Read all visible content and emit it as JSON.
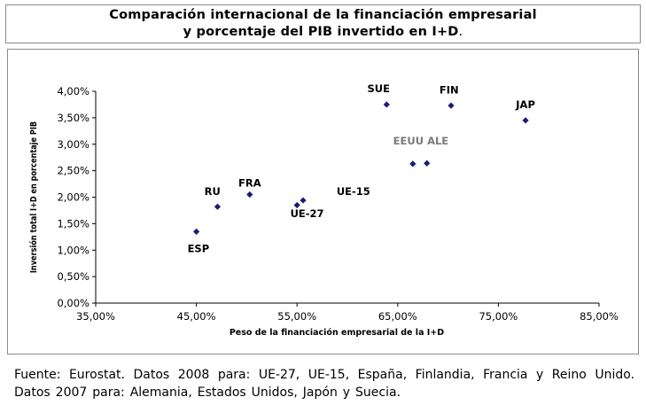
{
  "chart_data": {
    "type": "scatter",
    "title_lines": [
      "Comparación internacional de la financiación empresarial",
      "y porcentaje del PIB invertido en I+D"
    ],
    "title_suffix": ".",
    "xlabel": "Peso de la financiación empresarial de la I+D",
    "ylabel": "Inversión total I+D en porcentaje PIB",
    "xlim": [
      35,
      85
    ],
    "ylim": [
      0,
      4
    ],
    "x_ticks": [
      35,
      45,
      55,
      65,
      75,
      85
    ],
    "y_ticks": [
      0,
      0.5,
      1.0,
      1.5,
      2.0,
      2.5,
      3.0,
      3.5,
      4.0
    ],
    "x_tick_labels": [
      "35,00%",
      "45,00%",
      "55,00%",
      "65,00%",
      "75,00%",
      "85,00%"
    ],
    "y_tick_labels": [
      "0,00%",
      "0,50%",
      "1,00%",
      "1,50%",
      "2,00%",
      "2,50%",
      "3,00%",
      "3,50%",
      "4,00%"
    ],
    "grid": false,
    "marker_color": "#1a1a80",
    "points": [
      {
        "x": 45.0,
        "y": 1.35
      },
      {
        "x": 47.1,
        "y": 1.82
      },
      {
        "x": 50.3,
        "y": 2.05
      },
      {
        "x": 55.0,
        "y": 1.85
      },
      {
        "x": 55.6,
        "y": 1.94
      },
      {
        "x": 63.9,
        "y": 3.75
      },
      {
        "x": 66.5,
        "y": 2.63
      },
      {
        "x": 67.9,
        "y": 2.64
      },
      {
        "x": 70.3,
        "y": 3.73
      },
      {
        "x": 77.7,
        "y": 3.45
      }
    ],
    "annotations": [
      {
        "text": "ESP",
        "x": 45.2,
        "y": 0.96,
        "color": "#000000"
      },
      {
        "text": "RU",
        "x": 46.6,
        "y": 2.04,
        "color": "#000000"
      },
      {
        "text": "FRA",
        "x": 50.3,
        "y": 2.2,
        "color": "#000000"
      },
      {
        "text": "UE-27",
        "x": 56.0,
        "y": 1.62,
        "color": "#000000"
      },
      {
        "text": "UE-15",
        "x": 60.6,
        "y": 2.04,
        "color": "#000000"
      },
      {
        "text": "SUE",
        "x": 63.1,
        "y": 3.98,
        "color": "#000000"
      },
      {
        "text": "EEUU ALE",
        "x": 67.3,
        "y": 3.0,
        "color": "#7a7a7a"
      },
      {
        "text": "FIN",
        "x": 70.1,
        "y": 3.96,
        "color": "#000000"
      },
      {
        "text": "JAP",
        "x": 77.7,
        "y": 3.68,
        "color": "#000000"
      }
    ]
  },
  "source_text": "Fuente: Eurostat. Datos 2008 para: UE-27, UE-15, España, Finlandia, Francia y Reino Unido. Datos 2007 para: Alemania, Estados Unidos, Japón y Suecia."
}
